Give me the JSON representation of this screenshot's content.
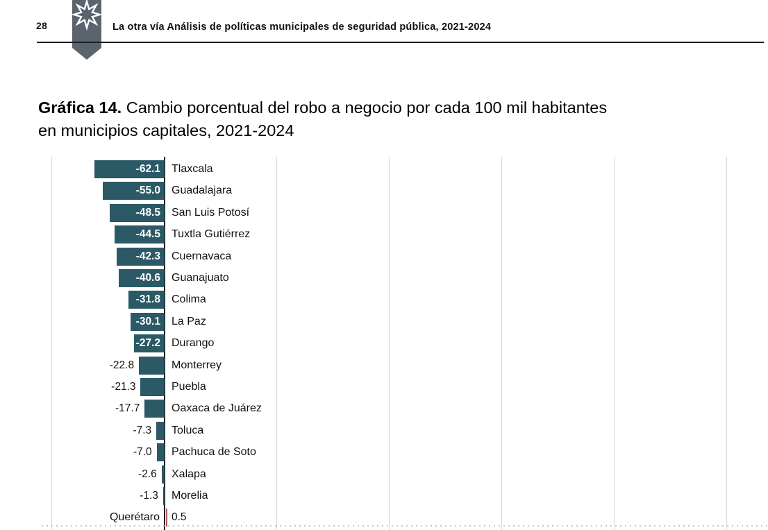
{
  "page": {
    "number": "28",
    "header_title": "La otra vía Análisis de políticas municipales de seguridad pública, 2021-2024"
  },
  "chart_title": {
    "label": "Gráfica 14.",
    "line1": "Cambio porcentual del robo a negocio por cada 100 mil habitantes",
    "line2": "en municipios capitales, 2021-2024"
  },
  "chart_data": {
    "type": "bar",
    "orientation": "horizontal",
    "title": "Gráfica 14. Cambio porcentual del robo a negocio por cada 100 mil habitantes en municipios capitales, 2021-2024",
    "categories": [
      "Tlaxcala",
      "Guadalajara",
      "San Luis Potosí",
      "Tuxtla Gutiérrez",
      "Cuernavaca",
      "Guanajuato",
      "Colima",
      "La Paz",
      "Durango",
      "Monterrey",
      "Puebla",
      "Oaxaca de Juárez",
      "Toluca",
      "Pachuca de Soto",
      "Xalapa",
      "Morelia",
      "Querétaro"
    ],
    "values": [
      -62.1,
      -55.0,
      -48.5,
      -44.5,
      -42.3,
      -40.6,
      -31.8,
      -30.1,
      -27.2,
      -22.8,
      -21.3,
      -17.7,
      -7.3,
      -7.0,
      -2.6,
      -1.3,
      0.5
    ],
    "value_labels": [
      "-62.1",
      "-55.0",
      "-48.5",
      "-44.5",
      "-42.3",
      "-40.6",
      "-31.8",
      "-30.1",
      "-27.2",
      "-22.8",
      "-21.3",
      "-17.7",
      "-7.3",
      "-7.0",
      "-2.6",
      "-1.3",
      "0.5"
    ],
    "xlim": [
      -100,
      500
    ],
    "gridline_interval": 100,
    "grid": true,
    "legend": false,
    "negative_color": "#2b5966",
    "positive_color": "#b25f5f"
  },
  "colors": {
    "pennant": "#59646e",
    "axis": "#161616",
    "gridline": "#d8d8d8",
    "rule": "#1c1c1c"
  }
}
